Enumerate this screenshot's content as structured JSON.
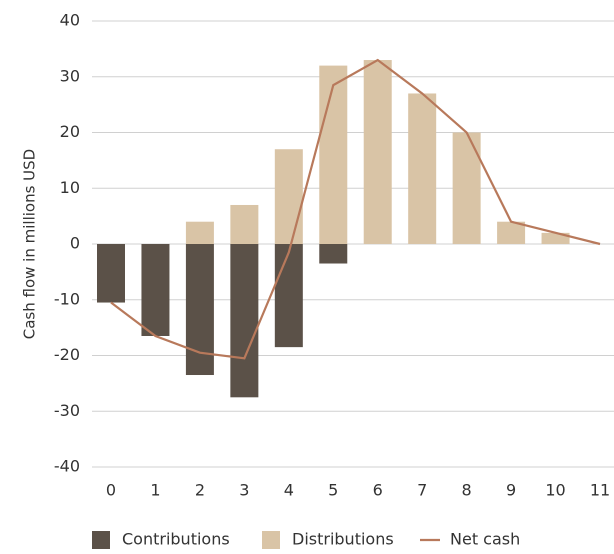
{
  "chart_data": {
    "type": "bar-line",
    "y_label": "Cash flow in millions USD",
    "categories": [
      "0",
      "1",
      "2",
      "3",
      "4",
      "5",
      "6",
      "7",
      "8",
      "9",
      "10",
      "11"
    ],
    "series": [
      {
        "name": "Contributions",
        "type": "bar",
        "color": "#5b5148",
        "values": [
          -10.5,
          -16.5,
          -23.5,
          -27.5,
          -18.5,
          -3.5,
          null,
          null,
          null,
          null,
          null,
          null
        ]
      },
      {
        "name": "Distributions",
        "type": "bar",
        "color": "#d9c4a6",
        "values": [
          null,
          null,
          4,
          7,
          17,
          32,
          33,
          27,
          20,
          4,
          2,
          null
        ]
      },
      {
        "name": "Net cash",
        "type": "line",
        "color": "#b8795b",
        "values": [
          -10.5,
          -16.5,
          -19.5,
          -20.5,
          -1.5,
          28.5,
          33,
          27,
          20,
          4,
          2,
          0
        ]
      }
    ],
    "ylim": [
      -40,
      40
    ],
    "yticks": [
      -40,
      -30,
      -20,
      -10,
      0,
      10,
      20,
      30,
      40
    ],
    "grid": true
  }
}
